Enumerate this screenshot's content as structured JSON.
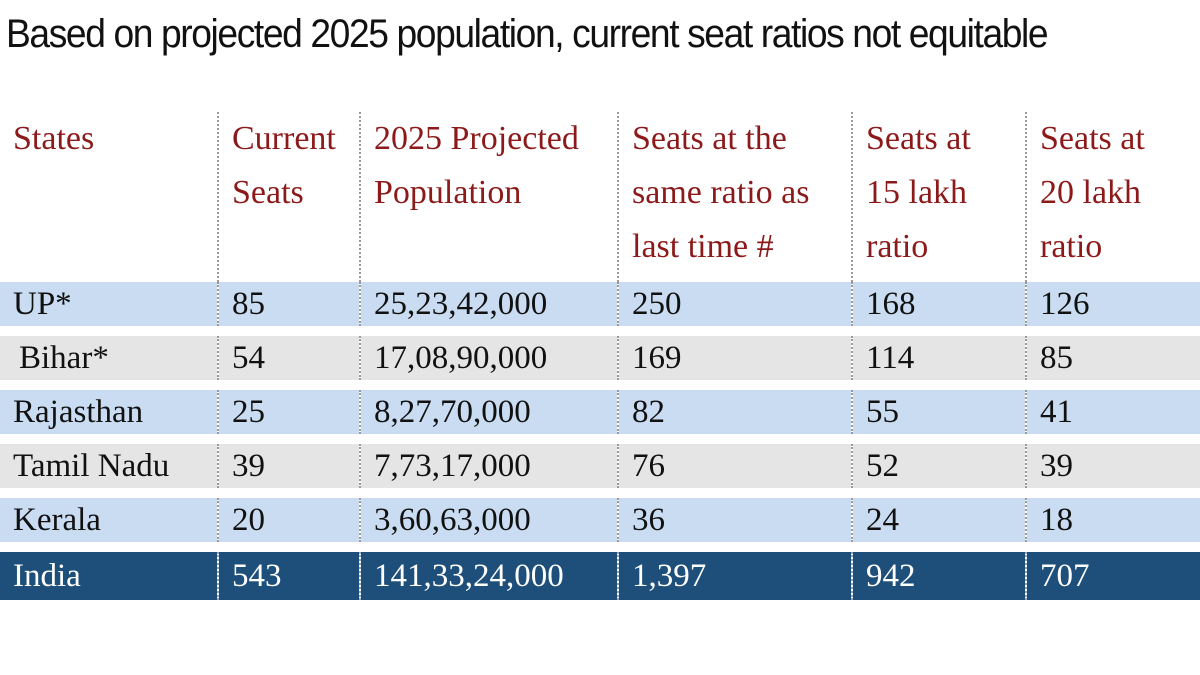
{
  "title": "Based on projected 2025 population, current seat ratios not equitable",
  "table": {
    "headers": [
      [
        "States"
      ],
      [
        "Current",
        "Seats"
      ],
      [
        "2025 Projected",
        "Population"
      ],
      [
        "Seats at the",
        "same ratio as",
        "last time #"
      ],
      [
        "Seats at",
        "15 lakh",
        "ratio"
      ],
      [
        "Seats at",
        "20 lakh",
        "ratio"
      ]
    ],
    "rows": [
      [
        "UP*",
        "85",
        "25,23,42,000",
        "250",
        "168",
        "126"
      ],
      [
        "Bihar*",
        "54",
        "17,08,90,000",
        "169",
        "114",
        "85"
      ],
      [
        "Rajasthan",
        "25",
        "8,27,70,000",
        "82",
        "55",
        "41"
      ],
      [
        "Tamil Nadu",
        "39",
        "7,73,17,000",
        "76",
        "52",
        "39"
      ],
      [
        "Kerala",
        "20",
        "3,60,63,000",
        "36",
        "24",
        "18"
      ]
    ],
    "total": [
      "India",
      "543",
      "141,33,24,000",
      "1,397",
      "942",
      "707"
    ]
  },
  "colors": {
    "header_text": "#8c1a1a",
    "row_blue": "#c9dcf2",
    "row_grey": "#e5e5e5",
    "total_bg": "#1e4f7a"
  }
}
